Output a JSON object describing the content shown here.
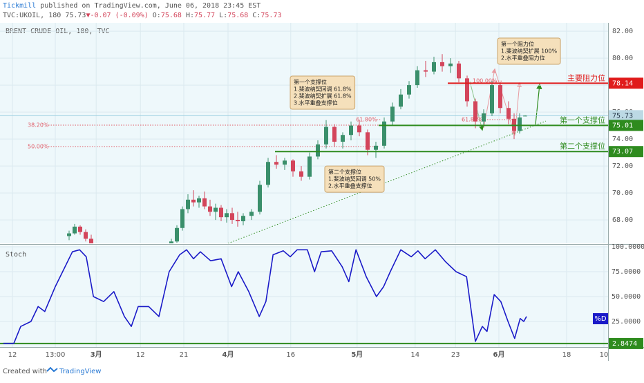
{
  "header": {
    "publisher": "Tickmill",
    "published": "published on TradingView.com, June 06, 2018 23:45 EST",
    "symbol": "TVC:UKOIL, 180",
    "last": "75.73",
    "change": "▼-0.07 (-0.09%)",
    "ohlc": [
      {
        "label": "O:",
        "value": "75.68"
      },
      {
        "label": "H:",
        "value": "75.77"
      },
      {
        "label": "L:",
        "value": "75.68"
      },
      {
        "label": "C:",
        "value": "75.73"
      }
    ]
  },
  "footer": {
    "created": "Created with",
    "brand": "TradingView"
  },
  "chart_data": [
    {
      "type": "candlestick",
      "title": "BRENT CRUDE OIL, 180, TVC",
      "up_color": "#3a8f6b",
      "down_color": "#d3455b",
      "x": [
        12.5,
        13.5,
        14.5,
        15.5,
        16.5,
        31,
        32,
        33,
        34,
        35,
        36,
        37,
        38,
        39,
        40,
        41,
        42,
        43,
        44,
        45.5,
        47,
        48.5,
        50,
        51.5,
        53,
        54.5,
        56,
        57.5,
        59,
        60.5,
        62,
        63.5,
        65,
        66.5,
        68,
        69.5,
        71,
        72.5,
        74,
        75.5,
        77,
        78.5,
        80,
        81.5,
        83,
        84.5,
        86,
        87.5,
        89,
        90.5,
        92,
        93,
        94,
        95
      ],
      "open": [
        66.8,
        67.0,
        67.5,
        67.1,
        66.6,
        66.0,
        66.4,
        67.4,
        68.8,
        69.5,
        69.3,
        69.6,
        69.0,
        68.6,
        68.9,
        68.2,
        68.5,
        68.0,
        67.9,
        68.3,
        68.6,
        70.6,
        72.3,
        72.1,
        72.4,
        71.6,
        71.2,
        72.7,
        73.6,
        74.9,
        73.8,
        74.3,
        75.0,
        74.5,
        73.2,
        73.5,
        75.3,
        76.4,
        77.3,
        78.0,
        79.1,
        79.0,
        79.7,
        79.4,
        79.6,
        78.5,
        76.8,
        75.3,
        75.9,
        78.0,
        76.3,
        75.5,
        74.6,
        75.68
      ],
      "high": [
        67.2,
        67.7,
        67.6,
        67.3,
        66.9,
        66.6,
        67.6,
        69.0,
        69.9,
        70.2,
        69.8,
        70.1,
        69.5,
        69.2,
        69.1,
        68.8,
        68.9,
        68.6,
        68.5,
        68.8,
        70.9,
        72.6,
        72.8,
        72.6,
        72.5,
        72.0,
        73.0,
        73.9,
        75.4,
        75.1,
        74.5,
        75.3,
        75.4,
        74.7,
        73.8,
        75.6,
        76.7,
        77.7,
        78.3,
        79.4,
        79.8,
        80.1,
        80.3,
        80.0,
        79.8,
        78.7,
        77.0,
        76.2,
        78.3,
        78.2,
        76.8,
        75.9,
        75.9,
        75.77
      ],
      "low": [
        66.5,
        66.9,
        66.9,
        66.4,
        66.0,
        65.8,
        66.3,
        67.2,
        68.5,
        69.0,
        68.9,
        68.8,
        68.3,
        68.0,
        67.9,
        67.8,
        67.7,
        67.5,
        67.6,
        68.0,
        68.4,
        70.4,
        71.8,
        71.7,
        71.2,
        70.9,
        71.0,
        72.5,
        73.3,
        73.4,
        73.3,
        73.9,
        74.2,
        72.8,
        72.6,
        73.3,
        75.0,
        76.2,
        77.0,
        77.8,
        78.6,
        78.8,
        79.0,
        78.9,
        78.2,
        76.4,
        74.8,
        74.9,
        75.7,
        75.9,
        75.1,
        74.0,
        74.4,
        75.68
      ],
      "close": [
        67.0,
        67.5,
        67.1,
        66.6,
        66.2,
        66.4,
        67.4,
        68.8,
        69.5,
        69.3,
        69.6,
        69.0,
        68.6,
        68.9,
        68.2,
        68.5,
        68.0,
        67.9,
        68.3,
        68.6,
        70.6,
        72.3,
        72.1,
        72.4,
        71.6,
        71.2,
        72.7,
        73.6,
        74.9,
        73.8,
        74.3,
        75.0,
        74.5,
        73.2,
        73.5,
        75.3,
        76.4,
        77.3,
        78.0,
        79.1,
        79.0,
        79.7,
        79.4,
        79.6,
        78.5,
        76.8,
        75.3,
        75.9,
        78.0,
        76.3,
        75.5,
        74.6,
        75.6,
        75.73
      ],
      "xlim": [
        0,
        110
      ],
      "ylim": [
        66.26,
        82.62
      ],
      "yticks": [
        {
          "value": 68,
          "label": "68.00"
        },
        {
          "value": 70,
          "label": "70.00"
        },
        {
          "value": 72,
          "label": "72.00"
        },
        {
          "value": 74,
          "label": "74.00"
        },
        {
          "value": 76,
          "label": "76.00"
        },
        {
          "value": 78,
          "label": "78.00"
        },
        {
          "value": 80,
          "label": "80.00"
        },
        {
          "value": 82,
          "label": "82.00"
        }
      ],
      "last_price": 75.73,
      "levels": [
        {
          "name": "主要阻力位",
          "value": 78.14,
          "color": "#e01b1b",
          "x0": 81
        },
        {
          "name": "第一个支撑位",
          "value": 75.01,
          "color": "#2e8b1e",
          "x0": 68.5
        },
        {
          "name": "第二个支撑位",
          "value": 73.07,
          "color": "#2e8b1e",
          "x0": 49.75
        }
      ],
      "fibs": [
        {
          "label": "38.20%",
          "value": 75.03,
          "x": [
            5,
            68.5
          ]
        },
        {
          "label": "50.00%",
          "value": 73.44,
          "x": [
            5,
            68.5
          ]
        },
        {
          "label": "61.80%",
          "value": 75.44,
          "x": [
            64.4,
            69
          ]
        },
        {
          "label": "61.80%",
          "value": 75.44,
          "x": [
            83.5,
            93
          ]
        },
        {
          "label": "100.00%",
          "value": 78.3,
          "x": [
            85.5,
            91
          ]
        }
      ],
      "trendline": {
        "x": [
          41.25,
          98.75
        ],
        "y": [
          66.26,
          75.33
        ]
      },
      "annotations": [
        {
          "x": 52.5,
          "y": 78.67,
          "lines": [
            "第一个支撑位",
            "1.斐波纳契回调 61.8%",
            "2.斐波纳契扩展 61.8%",
            "3.水平重叠支撑位"
          ]
        },
        {
          "x": 58.75,
          "y": 72.0,
          "lines": [
            "第二个支撑位",
            "1.斐波纳契回调 50%",
            "2.水平重叠支撑位"
          ]
        },
        {
          "x": 90,
          "y": 81.49,
          "lines": [
            "第一个阻力位",
            "1.斐波纳契扩展 100%",
            "2.水平重叠阻力位"
          ]
        }
      ]
    },
    {
      "type": "line",
      "title": "Stoch",
      "xlim": [
        0,
        110
      ],
      "ylim": [
        0,
        100
      ],
      "yticks": [
        {
          "value": 25,
          "label": "25.0000"
        },
        {
          "value": 50,
          "label": "50.0000"
        },
        {
          "value": 75,
          "label": "75.0000"
        },
        {
          "value": 100,
          "label": "100.0000"
        }
      ],
      "xticks": [
        {
          "value": 2.25,
          "label": "12"
        },
        {
          "value": 10,
          "label": "13:00"
        },
        {
          "value": 17.4,
          "label": "3月"
        },
        {
          "value": 25.4,
          "label": "12"
        },
        {
          "value": 33.25,
          "label": "21"
        },
        {
          "value": 41.25,
          "label": "4月"
        },
        {
          "value": 52.6,
          "label": "16"
        },
        {
          "value": 64.6,
          "label": "5月"
        },
        {
          "value": 75.1,
          "label": "14"
        },
        {
          "value": 82.4,
          "label": "23"
        },
        {
          "value": 90.25,
          "label": "6月"
        },
        {
          "value": 102.5,
          "label": "18"
        },
        {
          "value": 109.25,
          "label": "10"
        }
      ],
      "level": {
        "value": 2.8474,
        "color": "#2e8b1e"
      },
      "series": [
        {
          "name": "%D",
          "color": "#1a1ac8",
          "x": [
            0.6,
            2.5,
            3.75,
            5.6,
            6.9,
            8.1,
            10,
            13.1,
            14.4,
            15.6,
            16.9,
            18.75,
            20.6,
            22.5,
            23.75,
            25,
            26.9,
            28.75,
            30.6,
            32.5,
            33.75,
            35,
            36.25,
            38.1,
            40,
            41.9,
            43.1,
            45,
            46.9,
            48.1,
            49.4,
            51.25,
            52.5,
            53.75,
            55.6,
            56.9,
            58.1,
            60,
            61.9,
            63.1,
            64.4,
            66.25,
            68.1,
            69.4,
            70.6,
            72.5,
            74.4,
            75.6,
            76.9,
            78.75,
            80.6,
            82.5,
            84.4,
            86,
            87.25,
            88.1,
            89.4,
            90.6,
            91.9,
            93.1,
            94.1,
            94.75,
            95.25
          ],
          "values": [
            3,
            3,
            20,
            25,
            40,
            35,
            60,
            95,
            97,
            90,
            50,
            45,
            55,
            30,
            20,
            40,
            40,
            30,
            75,
            92,
            97,
            88,
            95,
            86,
            88,
            60,
            75,
            55,
            30,
            45,
            92,
            96,
            90,
            97,
            97,
            75,
            95,
            96,
            80,
            65,
            97,
            70,
            50,
            60,
            75,
            97,
            90,
            96,
            88,
            97,
            85,
            75,
            70,
            5,
            20,
            15,
            52,
            45,
            25,
            8,
            28,
            25,
            30
          ]
        }
      ]
    }
  ]
}
